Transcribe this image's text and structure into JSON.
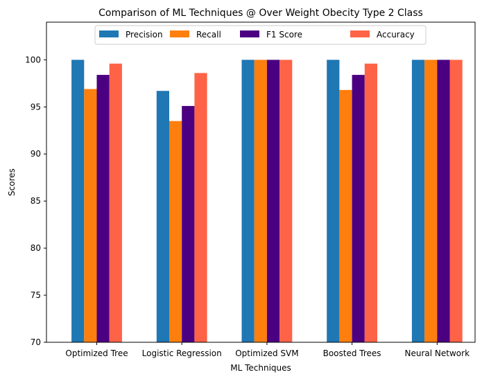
{
  "chart_data": {
    "type": "bar",
    "title": "Comparison of ML Techniques @ Over Weight Obecity Type 2 Class",
    "xlabel": "ML Techniques",
    "ylabel": "Scores",
    "ylim": [
      70,
      104
    ],
    "yticks": [
      70,
      75,
      80,
      85,
      90,
      95,
      100
    ],
    "grid": false,
    "legend_position": "top-center",
    "categories": [
      "Optimized Tree",
      "Logistic Regression",
      "Optimized SVM",
      "Boosted Trees",
      "Neural Network"
    ],
    "series": [
      {
        "name": "Precision",
        "color": "#1f77b4",
        "values": [
          100,
          96.7,
          100,
          100,
          100
        ]
      },
      {
        "name": "Recall",
        "color": "#ff7f0e",
        "values": [
          96.9,
          93.5,
          100,
          96.8,
          100
        ]
      },
      {
        "name": "F1 Score",
        "color": "#4b0082",
        "values": [
          98.4,
          95.1,
          100,
          98.4,
          100
        ]
      },
      {
        "name": "Accuracy",
        "color": "#ff6347",
        "values": [
          99.6,
          98.6,
          100,
          99.6,
          100
        ]
      }
    ]
  }
}
